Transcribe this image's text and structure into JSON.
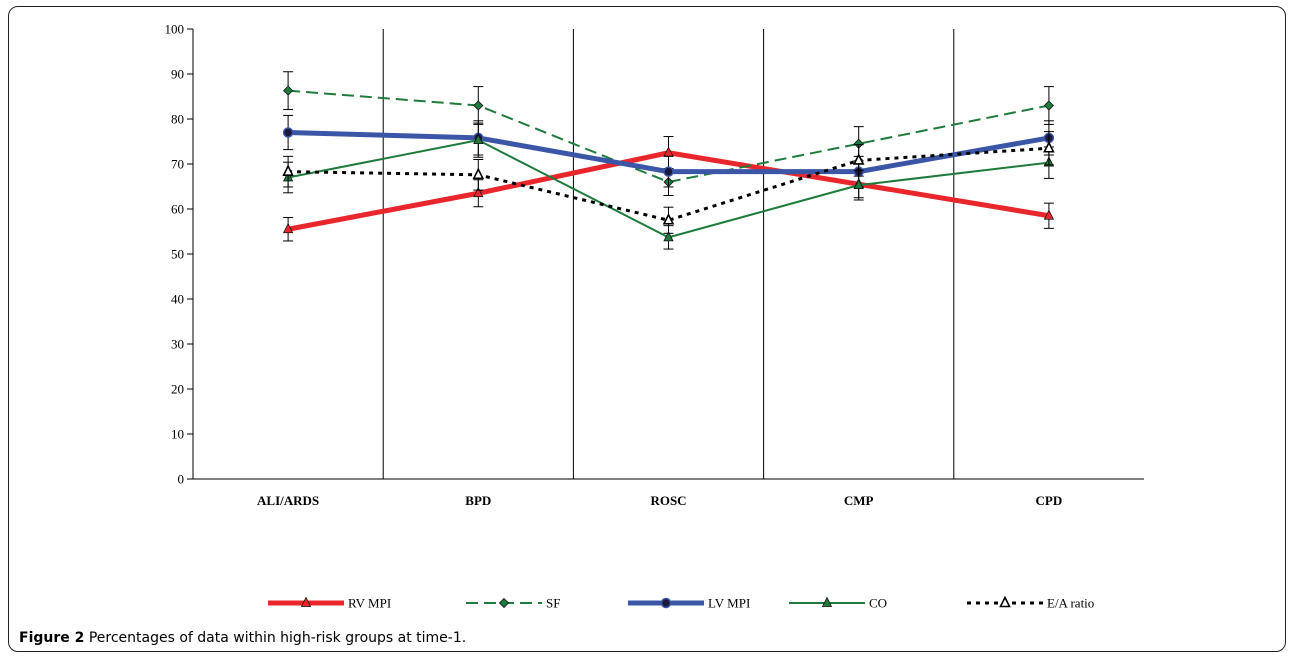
{
  "caption": {
    "label": "Figure 2",
    "text": "Percentages of data within high-risk groups at time-1",
    "end": "."
  },
  "chart_data": {
    "type": "line",
    "title": "",
    "xlabel": "",
    "ylabel": "",
    "categories": [
      "ALI/ARDS",
      "BPD",
      "ROSC",
      "CMP",
      "CPD"
    ],
    "ylim": [
      0,
      100
    ],
    "yticks": [
      0,
      10,
      20,
      30,
      40,
      50,
      60,
      70,
      80,
      90,
      100
    ],
    "grid": "vertical separators between categories",
    "legend_position": "bottom",
    "error_bars": true,
    "series": [
      {
        "name": "RV MPI",
        "values": [
          55.5,
          63.5,
          72.5,
          65.5,
          58.5
        ],
        "errors": [
          2.6,
          3.0,
          3.6,
          3.0,
          2.8
        ],
        "color": "#e8262c",
        "dash": "solid",
        "marker": "triangle",
        "width": 5
      },
      {
        "name": "SF",
        "values": [
          86.3,
          83.0,
          66.0,
          74.5,
          83.0
        ],
        "errors": [
          4.2,
          4.2,
          3.0,
          3.8,
          4.2
        ],
        "color": "#1e7b3c",
        "dash": "dashed",
        "marker": "diamond",
        "width": 2
      },
      {
        "name": "LV MPI",
        "values": [
          77.0,
          75.8,
          68.3,
          68.3,
          75.8
        ],
        "errors": [
          3.8,
          3.8,
          3.4,
          3.4,
          3.8
        ],
        "color": "#3b56a6",
        "dash": "solid",
        "marker": "circle",
        "width": 5
      },
      {
        "name": "CO",
        "values": [
          67.0,
          75.3,
          53.7,
          65.3,
          70.3
        ],
        "errors": [
          3.4,
          3.8,
          2.6,
          3.3,
          3.5
        ],
        "color": "#1e7b3c",
        "dash": "solid",
        "marker": "triangle",
        "width": 2
      },
      {
        "name": "E/A ratio",
        "values": [
          68.3,
          67.6,
          57.5,
          70.8,
          73.5
        ],
        "errors": [
          3.4,
          3.4,
          2.9,
          3.5,
          3.7
        ],
        "color": "#000000",
        "dash": "dotted",
        "marker": "triangle-open",
        "width": 3
      }
    ]
  }
}
